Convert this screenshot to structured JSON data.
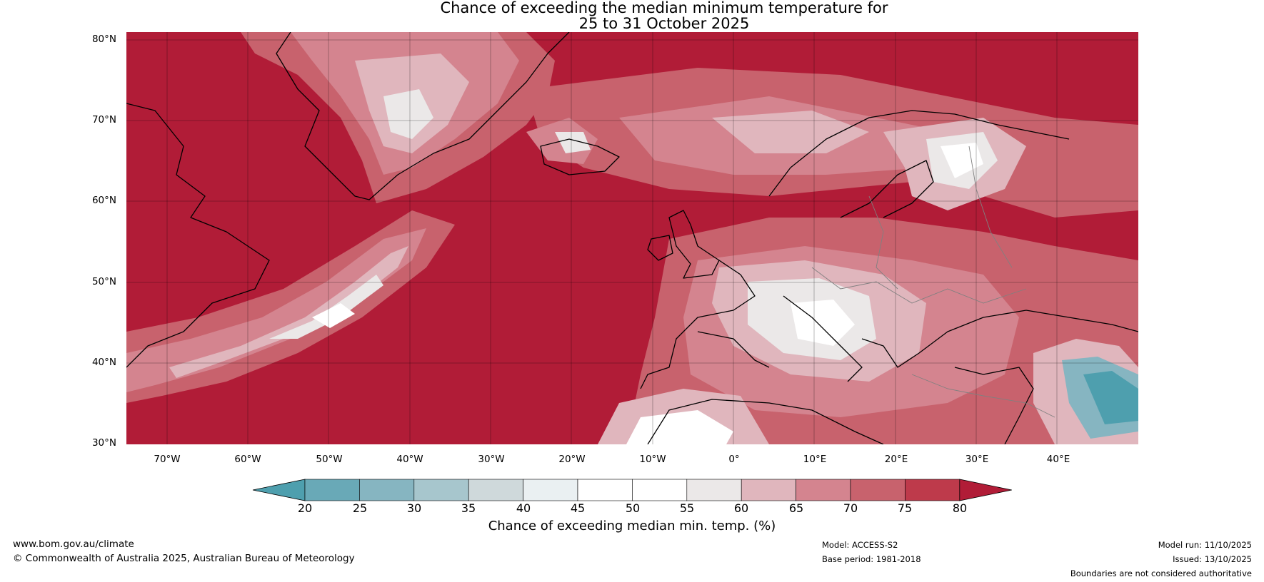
{
  "title": {
    "line1": "Chance of exceeding the median minimum temperature for",
    "line2": "25 to 31 October 2025"
  },
  "map": {
    "latitude_labels": [
      "80°N",
      "70°N",
      "60°N",
      "50°N",
      "40°N",
      "30°N"
    ],
    "longitude_labels": [
      "70°W",
      "60°W",
      "50°W",
      "40°W",
      "30°W",
      "20°W",
      "10°W",
      "0°",
      "10°E",
      "20°E",
      "30°E",
      "40°E"
    ],
    "extent": {
      "lon": [
        -75,
        50
      ],
      "lat": [
        30,
        81
      ]
    }
  },
  "colorbar": {
    "label": "Chance of exceeding median min. temp. (%)",
    "ticks": [
      "20",
      "25",
      "30",
      "35",
      "40",
      "45",
      "50",
      "55",
      "60",
      "65",
      "70",
      "75",
      "80"
    ],
    "colors": [
      "#4e9fae",
      "#69a9b7",
      "#86b5c1",
      "#a7c6cd",
      "#cfd9db",
      "#eaf0f2",
      "#ffffff",
      "#ffffff",
      "#ebe8e8",
      "#e0b6bd",
      "#d4848f",
      "#c8626d",
      "#be3a4b",
      "#b11c37"
    ]
  },
  "footer": {
    "website": "www.bom.gov.au/climate",
    "copyright": "© Commonwealth of Australia 2025, Australian Bureau of Meteorology",
    "model": "Model: ACCESS-S2",
    "base_period": "Base period: 1981-2018",
    "model_run": "Model run: 11/10/2025",
    "issued": "Issued: 13/10/2025",
    "disclaimer": "Boundaries are not considered authoritative"
  }
}
